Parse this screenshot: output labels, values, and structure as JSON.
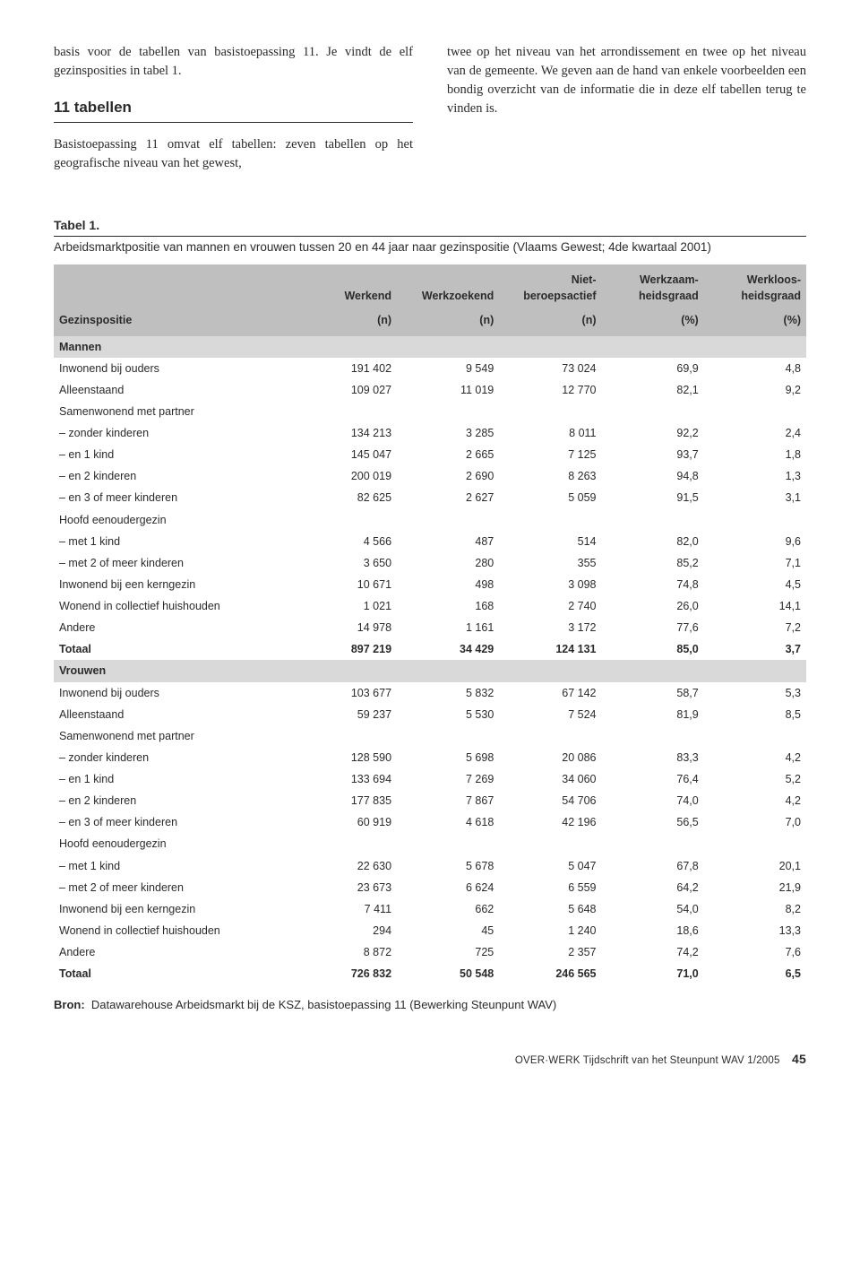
{
  "intro": {
    "left_para": "basis voor de tabellen van basistoepassing 11. Je vindt de elf gezinsposities in tabel 1.",
    "section_heading": "11 tabellen",
    "left_para2": "Basistoepassing 11 omvat elf tabellen: zeven tabellen op het geografische niveau van het gewest,",
    "right_para": "twee op het niveau van het arrondissement en twee op het niveau van de gemeente. We geven aan de hand van enkele voorbeelden een bondig overzicht van de informatie die in deze elf tabellen terug te vinden is."
  },
  "table": {
    "label": "Tabel 1.",
    "caption": "Arbeidsmarktpositie van mannen en vrouwen tussen 20 en 44 jaar naar gezinspositie (Vlaams Gewest; 4de kwartaal 2001)",
    "col_headers_top": [
      "",
      "Werkend",
      "Werkzoekend",
      "Niet-beroepsactief",
      "Werkzaam-heidsgraad",
      "Werkloos-heidsgraad"
    ],
    "row_header_label": "Gezinspositie",
    "unit_row": [
      "(n)",
      "(n)",
      "(n)",
      "(%)",
      "(%)"
    ],
    "groups": [
      {
        "name": "Mannen",
        "rows": [
          {
            "label": "Inwonend bij ouders",
            "v": [
              "191 402",
              "9 549",
              "73 024",
              "69,9",
              "4,8"
            ]
          },
          {
            "label": "Alleenstaand",
            "v": [
              "109 027",
              "11 019",
              "12 770",
              "82,1",
              "9,2"
            ]
          },
          {
            "label": "Samenwonend met partner",
            "v": [
              "",
              "",
              "",
              "",
              ""
            ]
          },
          {
            "label": "– zonder kinderen",
            "v": [
              "134 213",
              "3 285",
              "8 011",
              "92,2",
              "2,4"
            ]
          },
          {
            "label": "– en 1 kind",
            "v": [
              "145 047",
              "2 665",
              "7 125",
              "93,7",
              "1,8"
            ]
          },
          {
            "label": "– en 2 kinderen",
            "v": [
              "200 019",
              "2 690",
              "8 263",
              "94,8",
              "1,3"
            ]
          },
          {
            "label": "– en 3 of meer kinderen",
            "v": [
              "82 625",
              "2 627",
              "5 059",
              "91,5",
              "3,1"
            ]
          },
          {
            "label": "Hoofd eenoudergezin",
            "v": [
              "",
              "",
              "",
              "",
              ""
            ]
          },
          {
            "label": "– met 1 kind",
            "v": [
              "4 566",
              "487",
              "514",
              "82,0",
              "9,6"
            ]
          },
          {
            "label": "– met 2 of meer kinderen",
            "v": [
              "3 650",
              "280",
              "355",
              "85,2",
              "7,1"
            ]
          },
          {
            "label": "Inwonend bij een kerngezin",
            "v": [
              "10 671",
              "498",
              "3 098",
              "74,8",
              "4,5"
            ]
          },
          {
            "label": "Wonend in collectief huishouden",
            "v": [
              "1 021",
              "168",
              "2 740",
              "26,0",
              "14,1"
            ]
          },
          {
            "label": "Andere",
            "v": [
              "14 978",
              "1 161",
              "3 172",
              "77,6",
              "7,2"
            ]
          },
          {
            "label": "Totaal",
            "bold": true,
            "v": [
              "897 219",
              "34 429",
              "124 131",
              "85,0",
              "3,7"
            ]
          }
        ]
      },
      {
        "name": "Vrouwen",
        "rows": [
          {
            "label": "Inwonend bij ouders",
            "v": [
              "103 677",
              "5 832",
              "67 142",
              "58,7",
              "5,3"
            ]
          },
          {
            "label": "Alleenstaand",
            "v": [
              "59 237",
              "5 530",
              "7 524",
              "81,9",
              "8,5"
            ]
          },
          {
            "label": "Samenwonend met partner",
            "v": [
              "",
              "",
              "",
              "",
              ""
            ]
          },
          {
            "label": "– zonder kinderen",
            "v": [
              "128 590",
              "5 698",
              "20 086",
              "83,3",
              "4,2"
            ]
          },
          {
            "label": "– en 1 kind",
            "v": [
              "133 694",
              "7 269",
              "34 060",
              "76,4",
              "5,2"
            ]
          },
          {
            "label": "– en 2 kinderen",
            "v": [
              "177 835",
              "7 867",
              "54 706",
              "74,0",
              "4,2"
            ]
          },
          {
            "label": "– en 3 of meer kinderen",
            "v": [
              "60 919",
              "4 618",
              "42 196",
              "56,5",
              "7,0"
            ]
          },
          {
            "label": "Hoofd eenoudergezin",
            "v": [
              "",
              "",
              "",
              "",
              ""
            ]
          },
          {
            "label": "– met 1 kind",
            "v": [
              "22 630",
              "5 678",
              "5 047",
              "67,8",
              "20,1"
            ]
          },
          {
            "label": "– met 2 of meer kinderen",
            "v": [
              "23 673",
              "6 624",
              "6 559",
              "64,2",
              "21,9"
            ]
          },
          {
            "label": "Inwonend bij een kerngezin",
            "v": [
              "7 411",
              "662",
              "5 648",
              "54,0",
              "8,2"
            ]
          },
          {
            "label": "Wonend in collectief huishouden",
            "v": [
              "294",
              "45",
              "1 240",
              "18,6",
              "13,3"
            ]
          },
          {
            "label": "Andere",
            "v": [
              "8 872",
              "725",
              "2 357",
              "74,2",
              "7,6"
            ]
          },
          {
            "label": "Totaal",
            "bold": true,
            "v": [
              "726 832",
              "50 548",
              "246 565",
              "71,0",
              "6,5"
            ]
          }
        ]
      }
    ],
    "col_widths_pct": [
      32,
      13.6,
      13.6,
      13.6,
      13.6,
      13.6
    ],
    "header_bg": "#bfbfbf",
    "group_bg": "#d9d9d9"
  },
  "source": {
    "label": "Bron:",
    "text": "Datawarehouse Arbeidsmarkt bij de KSZ, basistoepassing 11 (Bewerking Steunpunt WAV)"
  },
  "footer": {
    "text": "OVER·WERK Tijdschrift van het Steunpunt WAV 1/2005",
    "page": "45"
  }
}
